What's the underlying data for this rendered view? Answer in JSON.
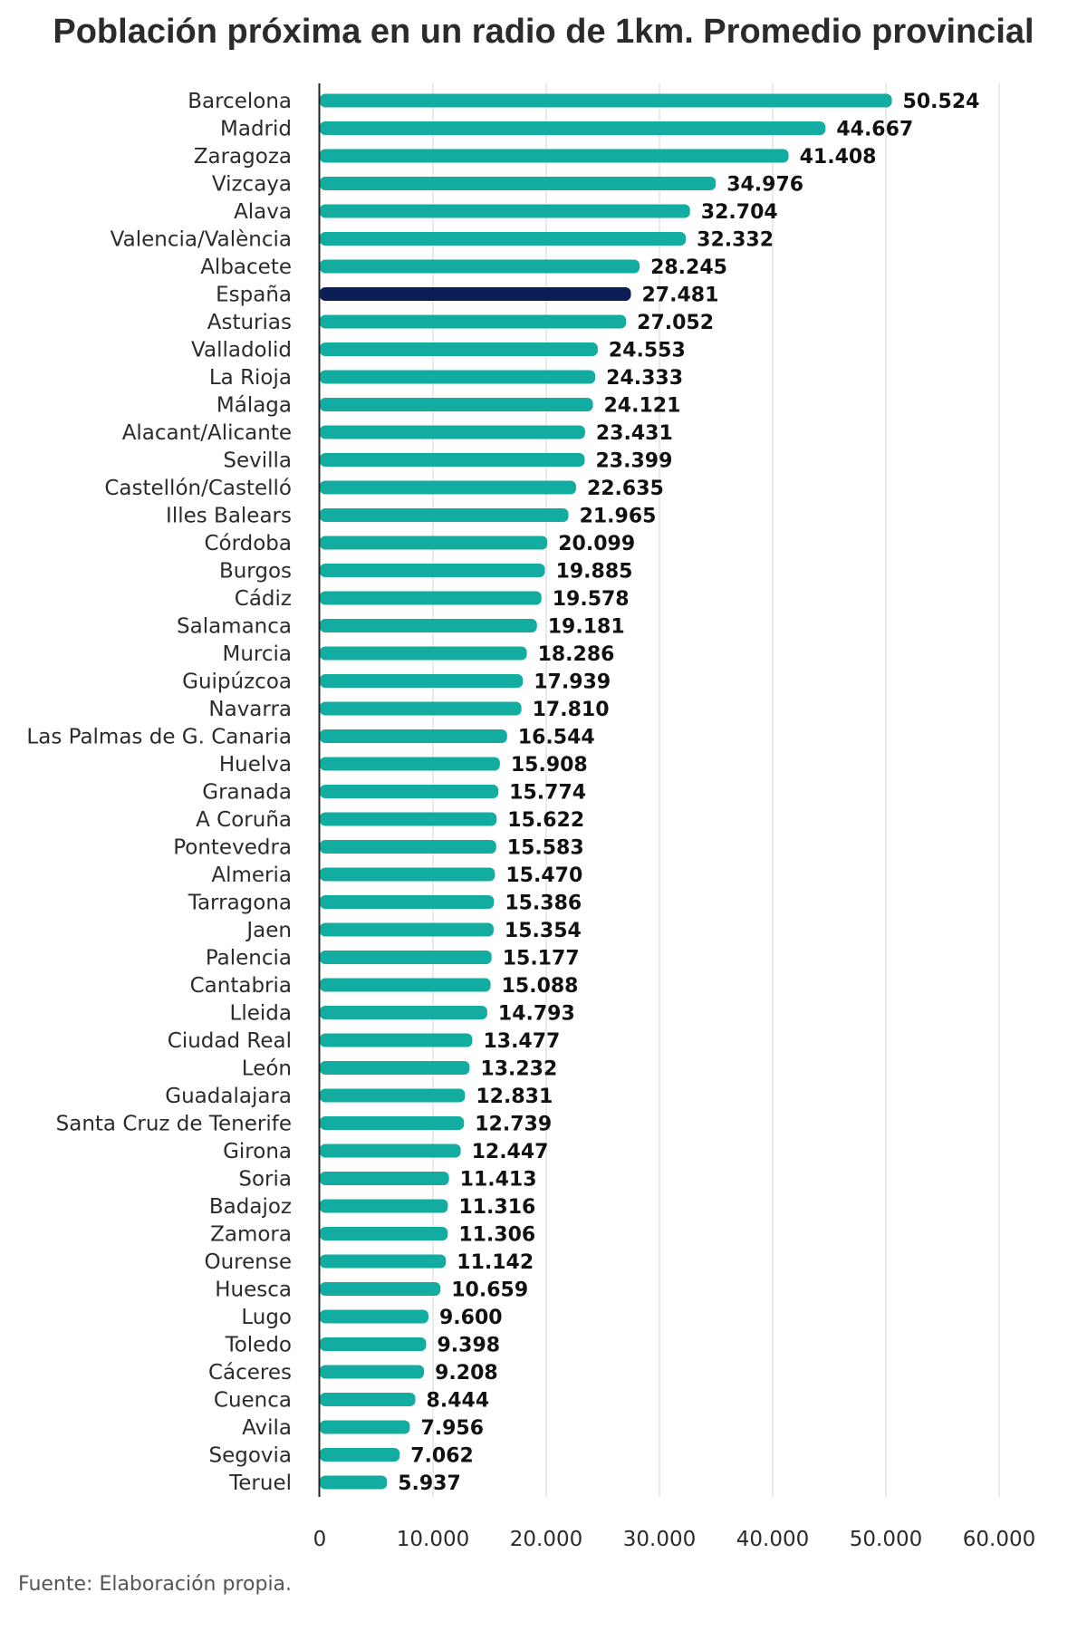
{
  "source": "Fuente: Elaboración propia.",
  "colors": {
    "bar": "#12ada0",
    "highlight": "#0c1e57",
    "grid": "#e3e3e3",
    "axis": "#222222"
  },
  "chart_data": {
    "type": "bar",
    "orientation": "horizontal",
    "title": "Población próxima en un radio de 1km. Promedio provincial",
    "xlim": [
      0,
      60000
    ],
    "x_ticks": [
      0,
      10000,
      20000,
      30000,
      40000,
      50000,
      60000
    ],
    "x_tick_labels": [
      "0",
      "10.000",
      "20.000",
      "30.000",
      "40.000",
      "50.000",
      "60.000"
    ],
    "grid": true,
    "highlight_category": "España",
    "categories": [
      "Barcelona",
      "Madrid",
      "Zaragoza",
      "Vizcaya",
      "Alava",
      "Valencia/València",
      "Albacete",
      "España",
      "Asturias",
      "Valladolid",
      "La Rioja",
      "Málaga",
      "Alacant/Alicante",
      "Sevilla",
      "Castellón/Castelló",
      "Illes Balears",
      "Córdoba",
      "Burgos",
      "Cádiz",
      "Salamanca",
      "Murcia",
      "Guipúzcoa",
      "Navarra",
      "Las Palmas de G. Canaria",
      "Huelva",
      "Granada",
      "A Coruña",
      "Pontevedra",
      "Almeria",
      "Tarragona",
      "Jaen",
      "Palencia",
      "Cantabria",
      "Lleida",
      "Ciudad Real",
      "León",
      "Guadalajara",
      "Santa Cruz de Tenerife",
      "Girona",
      "Soria",
      "Badajoz",
      "Zamora",
      "Ourense",
      "Huesca",
      "Lugo",
      "Toledo",
      "Cáceres",
      "Cuenca",
      "Avila",
      "Segovia",
      "Teruel"
    ],
    "values": [
      50524,
      44667,
      41408,
      34976,
      32704,
      32332,
      28245,
      27481,
      27052,
      24553,
      24333,
      24121,
      23431,
      23399,
      22635,
      21965,
      20099,
      19885,
      19578,
      19181,
      18286,
      17939,
      17810,
      16544,
      15908,
      15774,
      15622,
      15583,
      15470,
      15386,
      15354,
      15177,
      15088,
      14793,
      13477,
      13232,
      12831,
      12739,
      12447,
      11413,
      11316,
      11306,
      11142,
      10659,
      9600,
      9398,
      9208,
      8444,
      7956,
      7062,
      5937
    ],
    "value_labels": [
      "50.524",
      "44.667",
      "41.408",
      "34.976",
      "32.704",
      "32.332",
      "28.245",
      "27.481",
      "27.052",
      "24.553",
      "24.333",
      "24.121",
      "23.431",
      "23.399",
      "22.635",
      "21.965",
      "20.099",
      "19.885",
      "19.578",
      "19.181",
      "18.286",
      "17.939",
      "17.810",
      "16.544",
      "15.908",
      "15.774",
      "15.622",
      "15.583",
      "15.470",
      "15.386",
      "15.354",
      "15.177",
      "15.088",
      "14.793",
      "13.477",
      "13.232",
      "12.831",
      "12.739",
      "12.447",
      "11.413",
      "11.316",
      "11.306",
      "11.142",
      "10.659",
      "9.600",
      "9.398",
      "9.208",
      "8.444",
      "7.956",
      "7.062",
      "5.937"
    ]
  }
}
